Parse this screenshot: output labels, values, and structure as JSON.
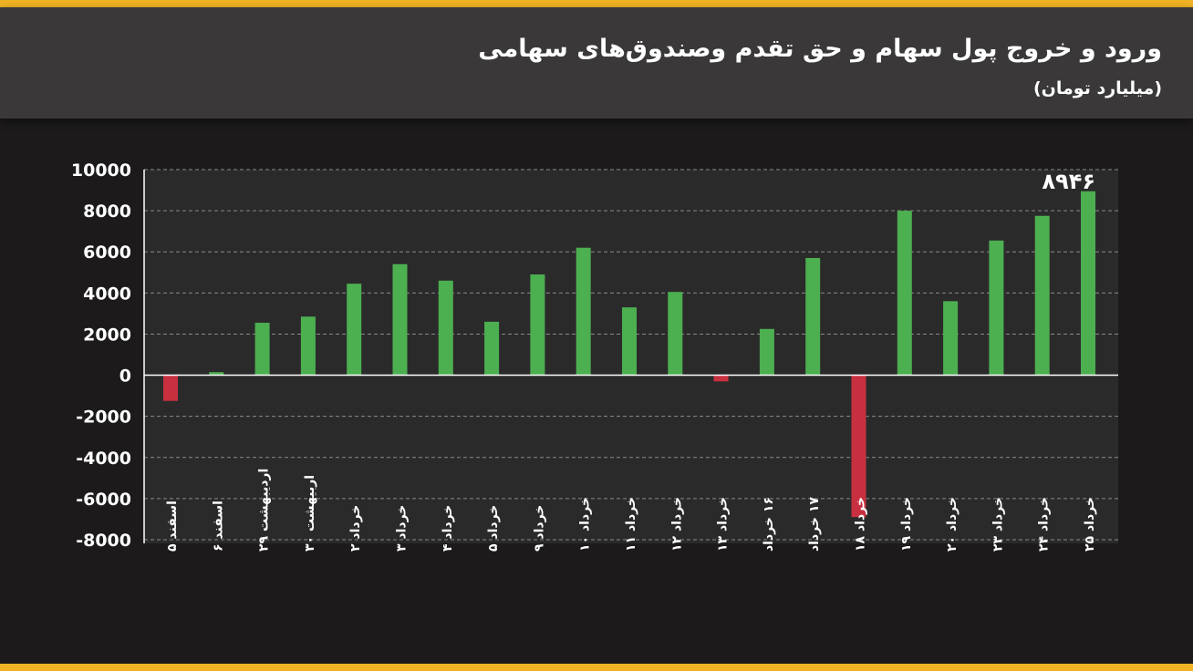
{
  "colors": {
    "accent": "#f0b323",
    "positive": "#4caf50",
    "negative": "#c8303f",
    "panel": "#2b2a2b",
    "background": "#1c1a1b",
    "header": "#3a3839"
  },
  "chart_data": {
    "type": "bar",
    "title": "ورود و خروج پول سهام و حق تقدم وصندوق‌های سهامی",
    "subtitle": "(میلیارد تومان)",
    "categories": [
      "اسفند ۵",
      "اسفند ۶",
      "اردیبهشت ۲۹",
      "اربیهشت ۳۰",
      "خرداد ۲",
      "خرداد ۳",
      "خرداد ۴",
      "خرداد ۵",
      "خرداد ۹",
      "خرداد ۱۰",
      "خرداد ۱۱",
      "خرداد ۱۲",
      "خرداد ۱۳",
      "۱۶ خرداد",
      "۱۷ خرداد",
      "خرداد ۱۸",
      "خرداد ۱۹",
      "خرداد ۲۰",
      "خرداد ۲۳",
      "خرداد ۲۴",
      "خرداد ۲۵"
    ],
    "values": [
      -1250,
      150,
      2550,
      2850,
      4450,
      5400,
      4600,
      2600,
      4900,
      6200,
      3300,
      4050,
      -300,
      2250,
      5700,
      -6900,
      8000,
      3600,
      6550,
      7750,
      8946
    ],
    "ylim": [
      -8000,
      10000
    ],
    "yticks": [
      10000,
      8000,
      6000,
      4000,
      2000,
      0,
      -2000,
      -4000,
      -6000,
      -8000
    ],
    "ytick_labels": [
      "10000",
      "8000",
      "6000",
      "4000",
      "2000",
      "0",
      "-2000",
      "-4000",
      "-6000",
      "-8000"
    ],
    "grid": true,
    "annotations": [
      {
        "category_index": 20,
        "text": "۸۹۴۶"
      }
    ],
    "xlabel": "",
    "ylabel": ""
  }
}
